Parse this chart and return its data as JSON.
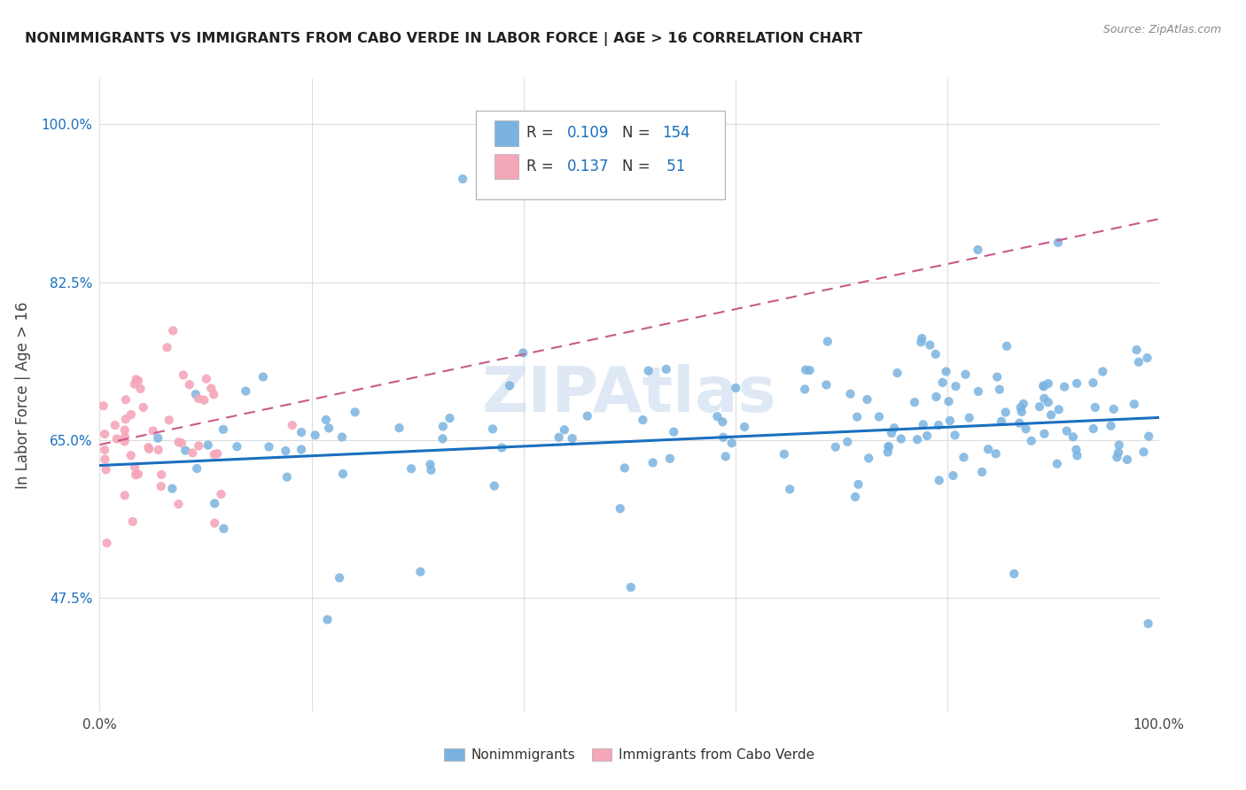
{
  "title": "NONIMMIGRANTS VS IMMIGRANTS FROM CABO VERDE IN LABOR FORCE | AGE > 16 CORRELATION CHART",
  "source": "Source: ZipAtlas.com",
  "ylabel": "In Labor Force | Age > 16",
  "xlim": [
    0.0,
    1.0
  ],
  "ylim": [
    0.35,
    1.05
  ],
  "xticks": [
    0.0,
    0.2,
    0.4,
    0.6,
    0.8,
    1.0
  ],
  "xticklabels": [
    "0.0%",
    "",
    "",
    "",
    "",
    "100.0%"
  ],
  "ytick_positions": [
    0.475,
    0.65,
    0.825,
    1.0
  ],
  "ytick_labels": [
    "47.5%",
    "65.0%",
    "82.5%",
    "100.0%"
  ],
  "blue_color": "#7ab3e0",
  "pink_color": "#f4a7b9",
  "blue_line_color": "#1a6fbf",
  "pink_line_color": "#c85a8a",
  "grid_color": "#dddddd",
  "background_color": "#ffffff",
  "legend_R1": "0.109",
  "legend_N1": "154",
  "legend_R2": "0.137",
  "legend_N2": "51",
  "watermark": "ZIPAtlas",
  "blue_n": 154,
  "pink_n": 51,
  "blue_trendline": [
    0.0,
    0.622,
    1.0,
    0.675
  ],
  "pink_trendline": [
    0.0,
    0.645,
    1.02,
    0.9
  ]
}
